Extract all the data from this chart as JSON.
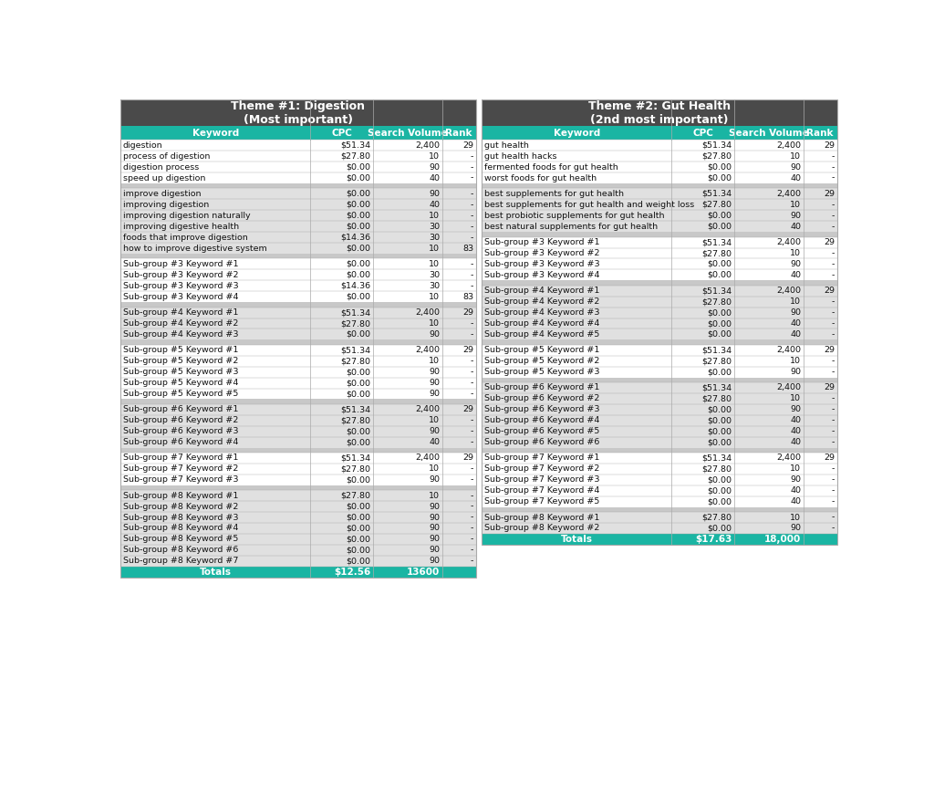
{
  "title_bg": "#4a4a4a",
  "header_bg": "#1ab5a3",
  "row_bg_white": "#ffffff",
  "row_bg_gray": "#e0e0e0",
  "separator_bg": "#c8c8c8",
  "totals_bg": "#1ab5a3",
  "border_color": "#aaaaaa",
  "title_color": "#ffffff",
  "header_color": "#ffffff",
  "text_color": "#111111",
  "totals_color": "#ffffff",
  "table1_title": "Theme #1: Digestion\n(Most important)",
  "table2_title": "Theme #2: Gut Health\n(2nd most important)",
  "col_headers": [
    "Keyword",
    "CPC",
    "Search Volume",
    "Rank"
  ],
  "table1_groups": [
    [
      [
        "digestion",
        "$51.34",
        "2,400",
        "29"
      ],
      [
        "process of digestion",
        "$27.80",
        "10",
        "-"
      ],
      [
        "digestion process",
        "$0.00",
        "90",
        "-"
      ],
      [
        "speed up digestion",
        "$0.00",
        "40",
        "-"
      ]
    ],
    [
      [
        "improve digestion",
        "$0.00",
        "90",
        "-"
      ],
      [
        "improving digestion",
        "$0.00",
        "40",
        "-"
      ],
      [
        "improving digestion naturally",
        "$0.00",
        "10",
        "-"
      ],
      [
        "improving digestive health",
        "$0.00",
        "30",
        "-"
      ],
      [
        "foods that improve digestion",
        "$14.36",
        "30",
        "-"
      ],
      [
        "how to improve digestive system",
        "$0.00",
        "10",
        "83"
      ]
    ],
    [
      [
        "Sub-group #3 Keyword #1",
        "$0.00",
        "10",
        "-"
      ],
      [
        "Sub-group #3 Keyword #2",
        "$0.00",
        "30",
        "-"
      ],
      [
        "Sub-group #3 Keyword #3",
        "$14.36",
        "30",
        "-"
      ],
      [
        "Sub-group #3 Keyword #4",
        "$0.00",
        "10",
        "83"
      ]
    ],
    [
      [
        "Sub-group #4 Keyword #1",
        "$51.34",
        "2,400",
        "29"
      ],
      [
        "Sub-group #4 Keyword #2",
        "$27.80",
        "10",
        "-"
      ],
      [
        "Sub-group #4 Keyword #3",
        "$0.00",
        "90",
        "-"
      ]
    ],
    [
      [
        "Sub-group #5 Keyword #1",
        "$51.34",
        "2,400",
        "29"
      ],
      [
        "Sub-group #5 Keyword #2",
        "$27.80",
        "10",
        "-"
      ],
      [
        "Sub-group #5 Keyword #3",
        "$0.00",
        "90",
        "-"
      ],
      [
        "Sub-group #5 Keyword #4",
        "$0.00",
        "90",
        "-"
      ],
      [
        "Sub-group #5 Keyword #5",
        "$0.00",
        "90",
        "-"
      ]
    ],
    [
      [
        "Sub-group #6 Keyword #1",
        "$51.34",
        "2,400",
        "29"
      ],
      [
        "Sub-group #6 Keyword #2",
        "$27.80",
        "10",
        "-"
      ],
      [
        "Sub-group #6 Keyword #3",
        "$0.00",
        "90",
        "-"
      ],
      [
        "Sub-group #6 Keyword #4",
        "$0.00",
        "40",
        "-"
      ]
    ],
    [
      [
        "Sub-group #7 Keyword #1",
        "$51.34",
        "2,400",
        "29"
      ],
      [
        "Sub-group #7 Keyword #2",
        "$27.80",
        "10",
        "-"
      ],
      [
        "Sub-group #7 Keyword #3",
        "$0.00",
        "90",
        "-"
      ]
    ],
    [
      [
        "Sub-group #8 Keyword #1",
        "$27.80",
        "10",
        "-"
      ],
      [
        "Sub-group #8 Keyword #2",
        "$0.00",
        "90",
        "-"
      ],
      [
        "Sub-group #8 Keyword #3",
        "$0.00",
        "90",
        "-"
      ],
      [
        "Sub-group #8 Keyword #4",
        "$0.00",
        "90",
        "-"
      ],
      [
        "Sub-group #8 Keyword #5",
        "$0.00",
        "90",
        "-"
      ],
      [
        "Sub-group #8 Keyword #6",
        "$0.00",
        "90",
        "-"
      ],
      [
        "Sub-group #8 Keyword #7",
        "$0.00",
        "90",
        "-"
      ]
    ]
  ],
  "table1_totals": [
    "Totals",
    "$12.56",
    "13600",
    ""
  ],
  "table2_groups": [
    [
      [
        "gut health",
        "$51.34",
        "2,400",
        "29"
      ],
      [
        "gut health hacks",
        "$27.80",
        "10",
        "-"
      ],
      [
        "fermented foods for gut health",
        "$0.00",
        "90",
        "-"
      ],
      [
        "worst foods for gut health",
        "$0.00",
        "40",
        "-"
      ]
    ],
    [
      [
        "best supplements for gut health",
        "$51.34",
        "2,400",
        "29"
      ],
      [
        "best supplements for gut health and weight loss",
        "$27.80",
        "10",
        "-"
      ],
      [
        "best probiotic supplements for gut health",
        "$0.00",
        "90",
        "-"
      ],
      [
        "best natural supplements for gut health",
        "$0.00",
        "40",
        "-"
      ]
    ],
    [
      [
        "Sub-group #3 Keyword #1",
        "$51.34",
        "2,400",
        "29"
      ],
      [
        "Sub-group #3 Keyword #2",
        "$27.80",
        "10",
        "-"
      ],
      [
        "Sub-group #3 Keyword #3",
        "$0.00",
        "90",
        "-"
      ],
      [
        "Sub-group #3 Keyword #4",
        "$0.00",
        "40",
        "-"
      ]
    ],
    [
      [
        "Sub-group #4 Keyword #1",
        "$51.34",
        "2,400",
        "29"
      ],
      [
        "Sub-group #4 Keyword #2",
        "$27.80",
        "10",
        "-"
      ],
      [
        "Sub-group #4 Keyword #3",
        "$0.00",
        "90",
        "-"
      ],
      [
        "Sub-group #4 Keyword #4",
        "$0.00",
        "40",
        "-"
      ],
      [
        "Sub-group #4 Keyword #5",
        "$0.00",
        "40",
        "-"
      ]
    ],
    [
      [
        "Sub-group #5 Keyword #1",
        "$51.34",
        "2,400",
        "29"
      ],
      [
        "Sub-group #5 Keyword #2",
        "$27.80",
        "10",
        "-"
      ],
      [
        "Sub-group #5 Keyword #3",
        "$0.00",
        "90",
        "-"
      ]
    ],
    [
      [
        "Sub-group #6 Keyword #1",
        "$51.34",
        "2,400",
        "29"
      ],
      [
        "Sub-group #6 Keyword #2",
        "$27.80",
        "10",
        "-"
      ],
      [
        "Sub-group #6 Keyword #3",
        "$0.00",
        "90",
        "-"
      ],
      [
        "Sub-group #6 Keyword #4",
        "$0.00",
        "40",
        "-"
      ],
      [
        "Sub-group #6 Keyword #5",
        "$0.00",
        "40",
        "-"
      ],
      [
        "Sub-group #6 Keyword #6",
        "$0.00",
        "40",
        "-"
      ]
    ],
    [
      [
        "Sub-group #7 Keyword #1",
        "$51.34",
        "2,400",
        "29"
      ],
      [
        "Sub-group #7 Keyword #2",
        "$27.80",
        "10",
        "-"
      ],
      [
        "Sub-group #7 Keyword #3",
        "$0.00",
        "90",
        "-"
      ],
      [
        "Sub-group #7 Keyword #4",
        "$0.00",
        "40",
        "-"
      ],
      [
        "Sub-group #7 Keyword #5",
        "$0.00",
        "40",
        "-"
      ]
    ],
    [
      [
        "Sub-group #8 Keyword #1",
        "$27.80",
        "10",
        "-"
      ],
      [
        "Sub-group #8 Keyword #2",
        "$0.00",
        "90",
        "-"
      ]
    ]
  ],
  "table2_totals": [
    "Totals",
    "$17.63",
    "18,000",
    ""
  ]
}
